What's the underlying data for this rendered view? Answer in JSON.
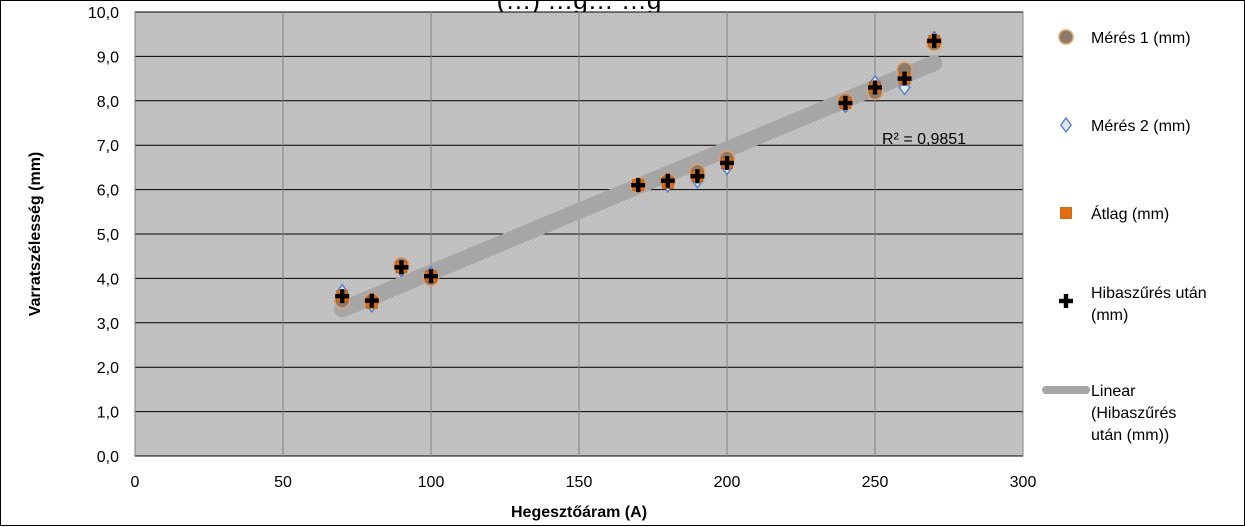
{
  "chart_data": {
    "type": "scatter",
    "title": "(…) …g… …g",
    "xlabel": "Hegesztőáram (A)",
    "ylabel": "Varratszélesség (mm)",
    "xlim": [
      0,
      300
    ],
    "ylim": [
      0,
      10
    ],
    "x_ticks": [
      "0",
      "50",
      "100",
      "150",
      "200",
      "250",
      "300"
    ],
    "y_ticks": [
      "0,0",
      "1,0",
      "2,0",
      "3,0",
      "4,0",
      "5,0",
      "6,0",
      "7,0",
      "8,0",
      "9,0",
      "10,0"
    ],
    "grid": true,
    "legend_position": "right",
    "series": [
      {
        "name": "Mérés 1 (mm)",
        "marker": "circle",
        "color": "#8C7B68",
        "points": [
          [
            70,
            3.5
          ],
          [
            80,
            3.5
          ],
          [
            90,
            4.3
          ],
          [
            100,
            4.0
          ],
          [
            170,
            6.1
          ],
          [
            180,
            6.2
          ],
          [
            190,
            6.4
          ],
          [
            200,
            6.7
          ],
          [
            240,
            8.0
          ],
          [
            250,
            8.2
          ],
          [
            260,
            8.7
          ],
          [
            270,
            9.3
          ]
        ]
      },
      {
        "name": "Mérés 2 (mm)",
        "marker": "diamond",
        "color": "#4472C4",
        "points": [
          [
            70,
            3.7
          ],
          [
            80,
            3.4
          ],
          [
            90,
            4.2
          ],
          [
            100,
            4.1
          ],
          [
            170,
            6.1
          ],
          [
            180,
            6.1
          ],
          [
            190,
            6.2
          ],
          [
            200,
            6.5
          ],
          [
            240,
            7.9
          ],
          [
            250,
            8.4
          ],
          [
            260,
            8.3
          ],
          [
            270,
            9.4
          ]
        ]
      },
      {
        "name": "Átlag (mm)",
        "marker": "square",
        "color": "#E46C0A",
        "points": [
          [
            70,
            3.6
          ],
          [
            80,
            3.45
          ],
          [
            90,
            4.25
          ],
          [
            100,
            4.05
          ],
          [
            170,
            6.1
          ],
          [
            180,
            6.15
          ],
          [
            190,
            6.3
          ],
          [
            200,
            6.6
          ],
          [
            240,
            7.95
          ],
          [
            250,
            8.3
          ],
          [
            260,
            8.5
          ],
          [
            270,
            9.35
          ]
        ]
      },
      {
        "name": "Hibaszűrés után (mm)",
        "marker": "plus",
        "color": "#000000",
        "points": [
          [
            70,
            3.6
          ],
          [
            80,
            3.5
          ],
          [
            90,
            4.25
          ],
          [
            100,
            4.05
          ],
          [
            170,
            6.1
          ],
          [
            180,
            6.2
          ],
          [
            190,
            6.3
          ],
          [
            200,
            6.6
          ],
          [
            240,
            7.95
          ],
          [
            250,
            8.3
          ],
          [
            260,
            8.5
          ],
          [
            270,
            9.35
          ]
        ]
      }
    ],
    "trendline": {
      "name": "Linear (Hibaszűrés után (mm))",
      "type": "linear",
      "color": "#A6A6A6",
      "x_range": [
        70,
        270
      ],
      "y_range": [
        3.3,
        8.85
      ],
      "r2_label": "R² = 0,9851"
    },
    "colors": {
      "plot_background": "#C0C0C0",
      "gridline": "#808080",
      "minor_gridline": "#A8A8A8"
    }
  }
}
